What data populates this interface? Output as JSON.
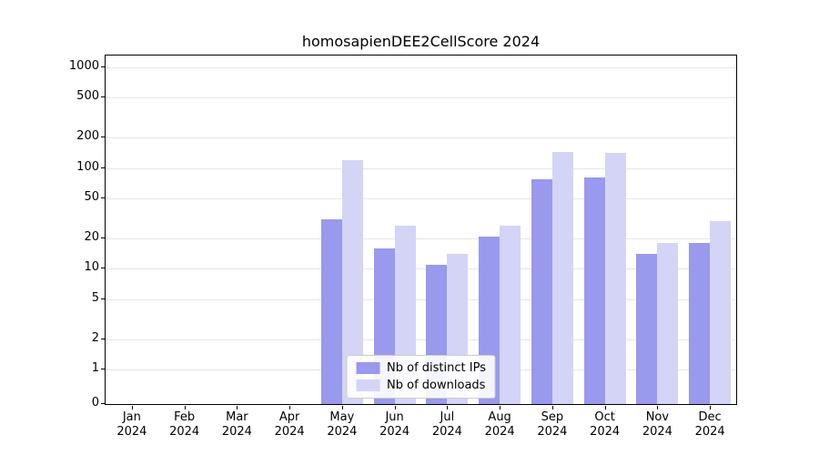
{
  "chart_data": {
    "type": "bar",
    "title": "homosapienDEE2CellScore 2024",
    "categories": [
      "Jan 2024",
      "Feb 2024",
      "Mar 2024",
      "Apr 2024",
      "May 2024",
      "Jun 2024",
      "Jul 2024",
      "Aug 2024",
      "Sep 2024",
      "Oct 2024",
      "Nov 2024",
      "Dec 2024"
    ],
    "series": [
      {
        "name": "Nb of distinct IPs",
        "color": "#9999ed",
        "values": [
          0,
          0,
          0,
          0,
          31,
          16,
          11,
          21,
          78,
          80,
          14,
          18
        ]
      },
      {
        "name": "Nb of downloads",
        "color": "#d4d4f6",
        "values": [
          0,
          0,
          0,
          0,
          120,
          27,
          14,
          27,
          145,
          140,
          18,
          30
        ]
      }
    ],
    "y_axis": {
      "scale": "symlog",
      "ticks": [
        0,
        1,
        2,
        5,
        10,
        20,
        50,
        100,
        200,
        500,
        1000
      ]
    },
    "xlabel": "",
    "ylabel": "",
    "grid": true,
    "legend_position": "lower center"
  }
}
